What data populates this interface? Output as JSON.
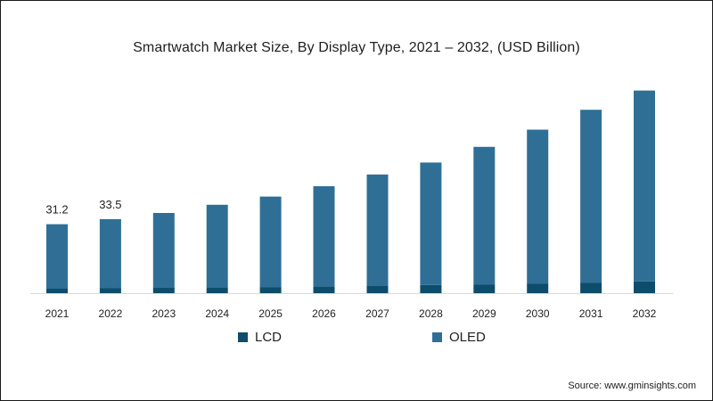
{
  "chart_data": {
    "type": "bar",
    "stacked": true,
    "title": "Smartwatch Market Size, By Display Type, 2021 – 2032, (USD Billion)",
    "categories": [
      "2021",
      "2022",
      "2023",
      "2024",
      "2025",
      "2026",
      "2027",
      "2028",
      "2029",
      "2030",
      "2031",
      "2032"
    ],
    "series": [
      {
        "name": "LCD",
        "color": "#0d4d6b",
        "values": [
          2.0,
          2.2,
          2.4,
          2.6,
          2.8,
          3.1,
          3.4,
          3.7,
          4.0,
          4.4,
          4.8,
          5.3
        ]
      },
      {
        "name": "OLED",
        "color": "#2f6f96",
        "values": [
          29.2,
          31.3,
          33.9,
          37.4,
          40.9,
          45.3,
          50.3,
          55.4,
          62.2,
          69.6,
          78.2,
          86.4
        ]
      }
    ],
    "data_labels": [
      {
        "category": "2021",
        "text": "31.2"
      },
      {
        "category": "2022",
        "text": "33.5"
      }
    ],
    "ylim": [
      0,
      100
    ],
    "grid": false,
    "legend_position": "bottom"
  },
  "source": "Source: www.gminsights.com"
}
